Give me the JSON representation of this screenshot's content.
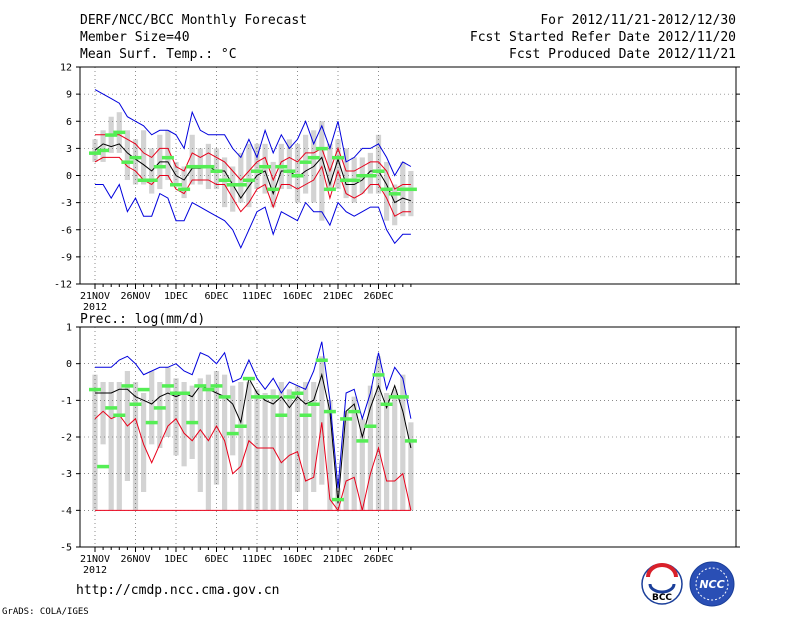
{
  "header": {
    "title": "DERF/NCC/BCC Monthly Forecast",
    "member_size": "Member Size=40",
    "period": "For 2012/11/21-2012/12/30",
    "started": "Fcst Started Refer Date 2012/11/20",
    "produced": "Fcst Produced Date 2012/11/21"
  },
  "footer": {
    "url": "http://cmdp.ncc.cma.gov.cn",
    "grads": "GrADS: COLA/IGES",
    "logo_bcc": "BCC",
    "logo_ncc": "NCC"
  },
  "colors": {
    "box": "#d3d3d3",
    "median": "#55ee55",
    "mean": "#000000",
    "spread": "#e8001a",
    "extreme": "#0000dd",
    "grid": "#444444"
  },
  "chart_data": [
    {
      "type": "box",
      "name": "temperature",
      "title": "Mean Surf. Temp.: °C",
      "ylim": [
        -12,
        12
      ],
      "yticks": [
        -12,
        -9,
        -6,
        -3,
        0,
        3,
        6,
        9,
        12
      ],
      "xlabels": [
        "21NOV",
        "26NOV",
        "1DEC",
        "6DEC",
        "11DEC",
        "16DEC",
        "21DEC",
        "26DEC"
      ],
      "xlabel_index": [
        0,
        5,
        10,
        15,
        20,
        25,
        30,
        35
      ],
      "year_label": "2012",
      "days": 40,
      "series": {
        "box_low": [
          1.5,
          1.5,
          2.5,
          2.5,
          -0.5,
          -1.0,
          -1.0,
          -2.0,
          -1.5,
          -0.5,
          -1.0,
          -2.5,
          -1.0,
          -1.0,
          -1.5,
          -1.5,
          -3.5,
          -4.0,
          -3.0,
          -3.5,
          -1.5,
          -2.0,
          -3.5,
          -1.5,
          -1.5,
          -3.0,
          -2.0,
          -3.0,
          -5.0,
          -1.5,
          -1.5,
          -2.5,
          -3.0,
          -2.0,
          -2.0,
          -2.0,
          -5.0,
          -5.5,
          -4.5,
          -4.5
        ],
        "box_high": [
          4.0,
          5.0,
          6.5,
          7.0,
          5.0,
          4.0,
          5.0,
          3.0,
          4.5,
          5.0,
          1.5,
          1.0,
          4.5,
          3.0,
          3.5,
          3.0,
          2.0,
          1.0,
          2.5,
          3.5,
          3.5,
          3.5,
          1.5,
          3.5,
          4.0,
          3.5,
          4.5,
          5.0,
          6.0,
          3.5,
          4.0,
          3.0,
          2.0,
          2.0,
          2.5,
          4.5,
          1.5,
          -1.0,
          1.5,
          0.5
        ],
        "median": [
          2.5,
          2.8,
          4.5,
          4.8,
          1.5,
          2.0,
          -0.5,
          -0.5,
          1.0,
          2.0,
          -1.0,
          -1.5,
          1.0,
          1.0,
          1.0,
          0.5,
          -0.5,
          -1.0,
          -1.0,
          -0.5,
          0.5,
          1.0,
          -1.5,
          1.0,
          0.5,
          0.0,
          1.5,
          2.0,
          3.0,
          -1.5,
          2.0,
          -0.5,
          -0.5,
          0.0,
          0.0,
          0.5,
          -1.5,
          -2.0,
          -1.5,
          -1.5
        ],
        "mean": [
          2.8,
          3.5,
          3.2,
          3.5,
          2.5,
          1.8,
          1.2,
          0.5,
          1.5,
          1.5,
          0.0,
          -0.5,
          0.8,
          0.8,
          1.0,
          0.5,
          0.5,
          -1.0,
          -2.5,
          -1.2,
          0.0,
          0.5,
          -2.0,
          0.5,
          0.5,
          -0.2,
          0.5,
          1.0,
          2.0,
          -1.0,
          1.8,
          -1.0,
          -1.0,
          -0.5,
          0.5,
          0.5,
          -1.0,
          -3.0,
          -2.5,
          -2.8
        ],
        "mean_plus": [
          4.5,
          4.5,
          4.5,
          4.5,
          4.0,
          3.5,
          2.5,
          2.0,
          3.0,
          3.0,
          1.0,
          0.5,
          2.5,
          2.0,
          2.5,
          2.0,
          1.5,
          0.5,
          -0.5,
          0.5,
          1.5,
          2.0,
          -0.5,
          1.5,
          2.0,
          1.5,
          2.5,
          2.5,
          3.0,
          0.5,
          3.0,
          0.5,
          0.5,
          1.0,
          1.5,
          1.5,
          0.5,
          -1.5,
          -1.0,
          -1.0
        ],
        "mean_minus": [
          1.5,
          2.0,
          2.0,
          2.0,
          1.0,
          0.5,
          -0.5,
          -1.0,
          0.0,
          0.0,
          -1.5,
          -2.0,
          -0.5,
          -0.5,
          -0.5,
          -1.0,
          -1.0,
          -2.5,
          -4.0,
          -3.0,
          -1.5,
          -1.0,
          -3.5,
          -1.0,
          -1.0,
          -1.5,
          -1.0,
          -0.5,
          1.0,
          -2.5,
          0.5,
          -2.0,
          -2.5,
          -2.0,
          -1.0,
          -1.0,
          -2.5,
          -4.5,
          -4.0,
          -4.0
        ],
        "max": [
          9.5,
          9.0,
          8.5,
          8.0,
          6.5,
          6.0,
          5.5,
          4.5,
          5.0,
          5.0,
          4.5,
          3.0,
          7.0,
          5.0,
          4.5,
          4.5,
          4.5,
          3.0,
          2.0,
          4.0,
          2.0,
          5.0,
          2.5,
          4.5,
          3.0,
          4.0,
          6.0,
          3.5,
          5.5,
          3.0,
          6.0,
          1.5,
          2.0,
          3.0,
          3.0,
          3.5,
          2.0,
          0.0,
          1.5,
          1.0
        ],
        "min": [
          -1.0,
          -1.0,
          -2.5,
          -1.0,
          -4.0,
          -2.5,
          -4.5,
          -4.5,
          -2.0,
          -2.5,
          -5.0,
          -5.0,
          -3.0,
          -3.5,
          -4.0,
          -4.5,
          -5.0,
          -6.0,
          -8.0,
          -6.0,
          -4.0,
          -3.5,
          -6.5,
          -4.0,
          -4.5,
          -5.0,
          -3.0,
          -4.0,
          -4.0,
          -5.5,
          -3.0,
          -4.0,
          -4.5,
          -4.0,
          -3.5,
          -3.5,
          -6.0,
          -7.5,
          -6.5,
          -6.5
        ]
      }
    },
    {
      "type": "box",
      "name": "precipitation",
      "title": "Prec.: log(mm/d)",
      "ylim": [
        -5,
        1
      ],
      "yticks": [
        -5,
        -4,
        -3,
        -2,
        -1,
        0,
        1
      ],
      "xlabels": [
        "21NOV",
        "26NOV",
        "1DEC",
        "6DEC",
        "11DEC",
        "16DEC",
        "21DEC",
        "26DEC"
      ],
      "xlabel_index": [
        0,
        5,
        10,
        15,
        20,
        25,
        30,
        35
      ],
      "year_label": "2012",
      "days": 40,
      "series": {
        "box_low": [
          -4,
          -2.2,
          -4,
          -4,
          -3.2,
          -4,
          -3.5,
          -2.2,
          -2.3,
          -2.0,
          -2.5,
          -2.8,
          -2.6,
          -3.5,
          -4,
          -3.3,
          -4,
          -2.5,
          -4,
          -4,
          -4,
          -4,
          -4,
          -4,
          -4,
          -3.5,
          -4,
          -3.5,
          -3.3,
          -4,
          -4,
          -4,
          -4,
          -4,
          -4,
          -4,
          -4,
          -4,
          -4,
          -4
        ],
        "box_high": [
          -0.3,
          -0.5,
          -0.5,
          -0.5,
          -0.2,
          -0.5,
          -0.8,
          -0.2,
          -0.5,
          -0.1,
          -0.4,
          -0.5,
          -0.6,
          -0.4,
          -0.3,
          -0.2,
          -0.3,
          -0.6,
          -0.5,
          -0.5,
          -0.7,
          -0.8,
          -0.7,
          -0.5,
          -0.7,
          -0.6,
          -0.5,
          -0.5,
          0.2,
          -1.0,
          -3.4,
          -1.3,
          -0.9,
          -1.5,
          -0.6,
          0.2,
          -0.8,
          -0.7,
          -0.3,
          -1.6
        ],
        "median": [
          -0.7,
          -2.8,
          -1.2,
          -1.4,
          -0.6,
          -1.1,
          -0.7,
          -1.6,
          -1.2,
          -0.6,
          -0.8,
          -0.8,
          -1.6,
          -0.6,
          -0.7,
          -0.6,
          -0.9,
          -1.9,
          -1.7,
          -0.4,
          -0.9,
          -0.9,
          -0.9,
          -1.4,
          -0.9,
          -0.8,
          -1.4,
          -1.1,
          0.1,
          -1.3,
          -3.7,
          -1.5,
          -1.3,
          -2.1,
          -1.7,
          -0.3,
          -1.1,
          -0.9,
          -0.9,
          -2.1
        ],
        "mean": [
          -0.8,
          -0.8,
          -0.8,
          -0.7,
          -0.7,
          -0.9,
          -1.0,
          -1.1,
          -0.9,
          -0.8,
          -0.9,
          -0.8,
          -0.9,
          -0.6,
          -0.7,
          -0.8,
          -0.9,
          -1.1,
          -1.6,
          -0.4,
          -0.8,
          -1.0,
          -1.1,
          -0.9,
          -1.2,
          -0.9,
          -1.1,
          -1.0,
          -0.3,
          -1.3,
          -3.8,
          -1.3,
          -1.1,
          -2.0,
          -1.2,
          -0.6,
          -1.2,
          -0.6,
          -1.3,
          -2.3
        ],
        "mean_minus": [
          -1.5,
          -1.3,
          -1.5,
          -1.4,
          -1.7,
          -1.5,
          -2.2,
          -2.7,
          -2.2,
          -1.7,
          -1.5,
          -1.9,
          -2.1,
          -1.8,
          -2.1,
          -1.7,
          -2.1,
          -3.0,
          -2.8,
          -2.1,
          -2.3,
          -2.3,
          -2.3,
          -2.7,
          -2.5,
          -2.4,
          -3.2,
          -3.1,
          -1.6,
          -3.7,
          -4.0,
          -3.2,
          -3.1,
          -4.0,
          -3.0,
          -2.3,
          -3.2,
          -3.2,
          -3.0,
          -4.0
        ],
        "max": [
          -0.1,
          -0.1,
          -0.1,
          0.1,
          0.2,
          0.0,
          -0.3,
          -0.2,
          -0.1,
          -0.1,
          0.0,
          -0.2,
          -0.3,
          0.3,
          0.2,
          0.0,
          0.3,
          -0.5,
          -0.4,
          0.1,
          -0.4,
          -0.7,
          -0.4,
          -0.8,
          -0.5,
          -0.6,
          -0.7,
          -0.2,
          0.6,
          -1.0,
          -3.4,
          -0.8,
          -0.7,
          -1.5,
          -0.8,
          0.3,
          -0.7,
          -0.1,
          -0.4,
          -1.5
        ],
        "floor": -4
      }
    }
  ]
}
